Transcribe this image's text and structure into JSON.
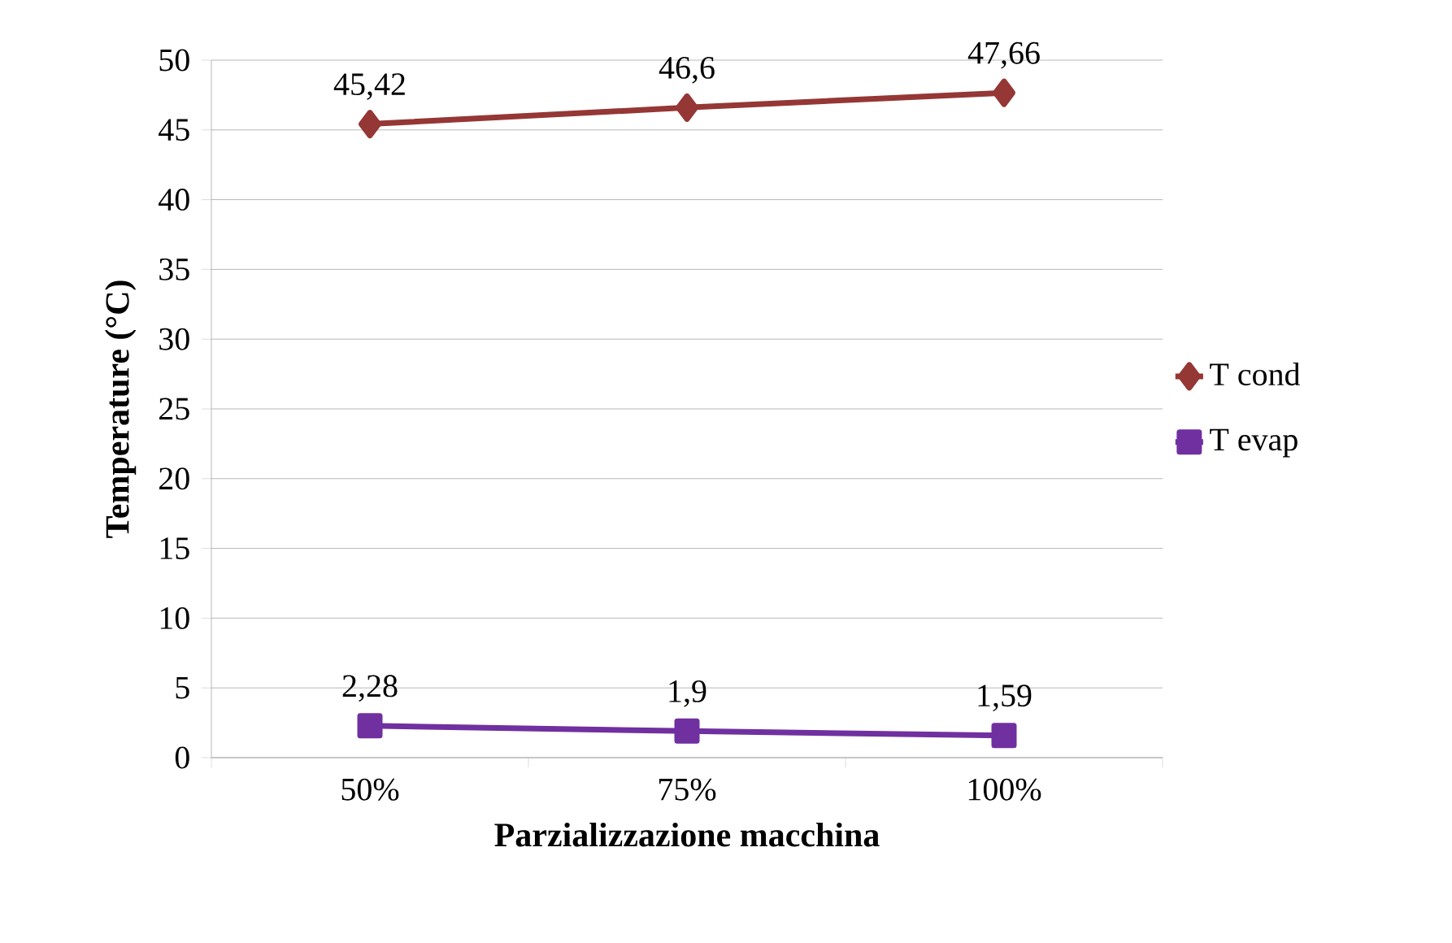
{
  "chart_data": {
    "type": "line",
    "xlabel": "Parzializzazione macchina",
    "ylabel": "Temperature (°C)",
    "categories": [
      "50%",
      "75%",
      "100%"
    ],
    "series": [
      {
        "name": "T cond",
        "color": "#953735",
        "marker": "diamond",
        "values": [
          45.42,
          46.6,
          47.66
        ],
        "value_labels": [
          "45,42",
          "46,6",
          "47,66"
        ]
      },
      {
        "name": "T evap",
        "color": "#7030a0",
        "marker": "square",
        "values": [
          2.28,
          1.9,
          1.59
        ],
        "value_labels": [
          "2,28",
          "1,9",
          "1,59"
        ]
      }
    ],
    "ylim": [
      0,
      50
    ],
    "yticks": [
      0,
      5,
      10,
      15,
      20,
      25,
      30,
      35,
      40,
      45,
      50
    ],
    "grid": "y",
    "legend": "right",
    "line_style": "solid"
  }
}
